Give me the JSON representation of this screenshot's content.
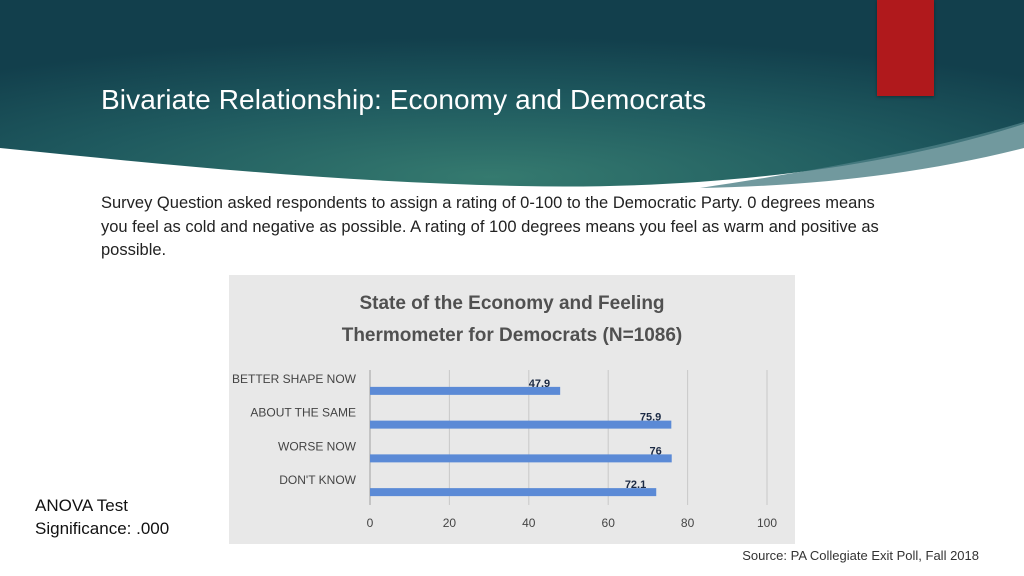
{
  "slide": {
    "title": "Bivariate Relationship: Economy and Democrats",
    "question": "Survey Question asked respondents to assign a rating of 0-100 to the Democratic Party. 0 degrees means you feel as cold and negative as possible. A rating of 100 degrees means you feel as warm and positive as possible.",
    "anova_line1": "ANOVA Test",
    "anova_line2": "Significance: .000",
    "source": "Source: PA Collegiate Exit Poll, Fall 2018"
  },
  "colors": {
    "header_dark": "#123f4c",
    "header_mid": "#2e6e6a",
    "accent_red": "#b0191c",
    "bar": "#5b8ad6",
    "chart_bg": "#e8e8e8",
    "grid": "#c8c8c8"
  },
  "chart_data": {
    "type": "bar",
    "orientation": "horizontal",
    "title_line1": "State of the Economy and Feeling",
    "title_line2": "Thermometer for Democrats (N=1086)",
    "categories": [
      "BETTER SHAPE NOW",
      "ABOUT THE SAME",
      "WORSE NOW",
      "DON'T KNOW"
    ],
    "values": [
      47.9,
      75.9,
      76,
      72.1
    ],
    "data_labels": [
      "47.9",
      "75.9",
      "76",
      "72.1"
    ],
    "xlim": [
      0,
      100
    ],
    "xticks": [
      "0",
      "20",
      "40",
      "60",
      "80",
      "100"
    ],
    "grid": true,
    "legend": false
  }
}
